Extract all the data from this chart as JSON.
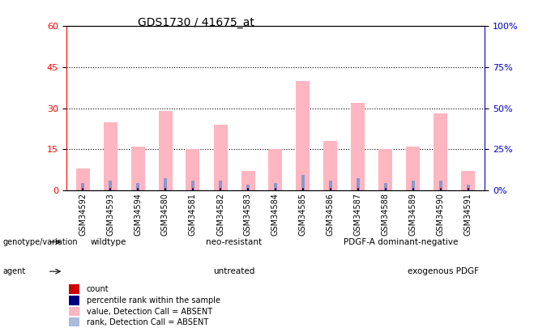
{
  "title": "GDS1730 / 41675_at",
  "samples": [
    "GSM34592",
    "GSM34593",
    "GSM34594",
    "GSM34580",
    "GSM34581",
    "GSM34582",
    "GSM34583",
    "GSM34584",
    "GSM34585",
    "GSM34586",
    "GSM34587",
    "GSM34588",
    "GSM34589",
    "GSM34590",
    "GSM34591"
  ],
  "value_bars": [
    8,
    25,
    16,
    29,
    15,
    24,
    7,
    15,
    40,
    18,
    32,
    15,
    16,
    28,
    7
  ],
  "rank_bars": [
    2.5,
    3.5,
    2.5,
    4.5,
    3.5,
    3.5,
    2.0,
    2.5,
    5.5,
    3.5,
    4.5,
    2.5,
    3.5,
    3.5,
    2.0
  ],
  "ylim_left": [
    0,
    60
  ],
  "ylim_right": [
    0,
    100
  ],
  "yticks_left": [
    0,
    15,
    30,
    45,
    60
  ],
  "yticks_right": [
    0,
    25,
    50,
    75,
    100
  ],
  "ytick_labels_right": [
    "0%",
    "25%",
    "50%",
    "75%",
    "100%"
  ],
  "genotype_groups": [
    {
      "label": "wildtype",
      "start": 0,
      "end": 3,
      "color": "#90EE90"
    },
    {
      "label": "neo-resistant",
      "start": 3,
      "end": 9,
      "color": "#90EE90"
    },
    {
      "label": "PDGF-A dominant-negative",
      "start": 9,
      "end": 15,
      "color": "#90EE90"
    }
  ],
  "agent_groups": [
    {
      "label": "untreated",
      "start": 0,
      "end": 12,
      "color": "#EE82EE"
    },
    {
      "label": "exogenous PDGF",
      "start": 12,
      "end": 15,
      "color": "#DA70D6"
    }
  ],
  "bar_color_pink": "#FFB6C1",
  "bar_color_blue": "#8899CC",
  "bar_color_red": "#CC0000",
  "bar_color_darkblue": "#000080",
  "bg_color": "#FFFFFF",
  "axis_tick_color_left": "#FF0000",
  "axis_tick_color_right": "#0000CC",
  "legend_items": [
    {
      "label": "count",
      "color": "#CC0000"
    },
    {
      "label": "percentile rank within the sample",
      "color": "#000080"
    },
    {
      "label": "value, Detection Call = ABSENT",
      "color": "#FFB6C1"
    },
    {
      "label": "rank, Detection Call = ABSENT",
      "color": "#AABBDD"
    }
  ]
}
